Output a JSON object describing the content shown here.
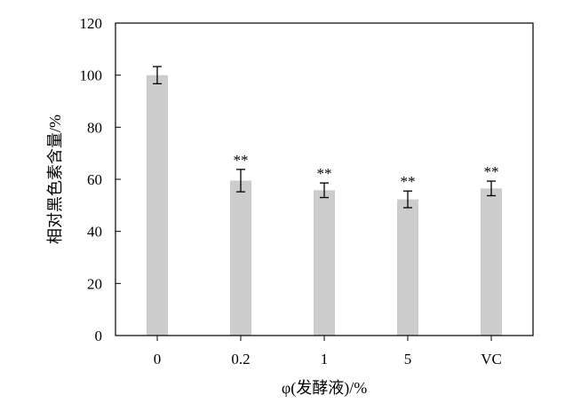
{
  "chart_data": {
    "type": "bar",
    "title": "",
    "xlabel": "φ(发酵液)/%",
    "ylabel": "相对黑色素含量/%",
    "categories": [
      "0",
      "0.2",
      "1",
      "5",
      "VC"
    ],
    "values": [
      100,
      59.5,
      55.8,
      52.3,
      56.5
    ],
    "errors": [
      3.3,
      4.3,
      2.8,
      3.2,
      2.8
    ],
    "significance": [
      "",
      "**",
      "**",
      "**",
      "**"
    ],
    "ylim": [
      0,
      120
    ],
    "yticks": [
      0,
      20,
      40,
      60,
      80,
      100,
      120
    ],
    "grid": false,
    "bar_color": "#cccccc"
  }
}
